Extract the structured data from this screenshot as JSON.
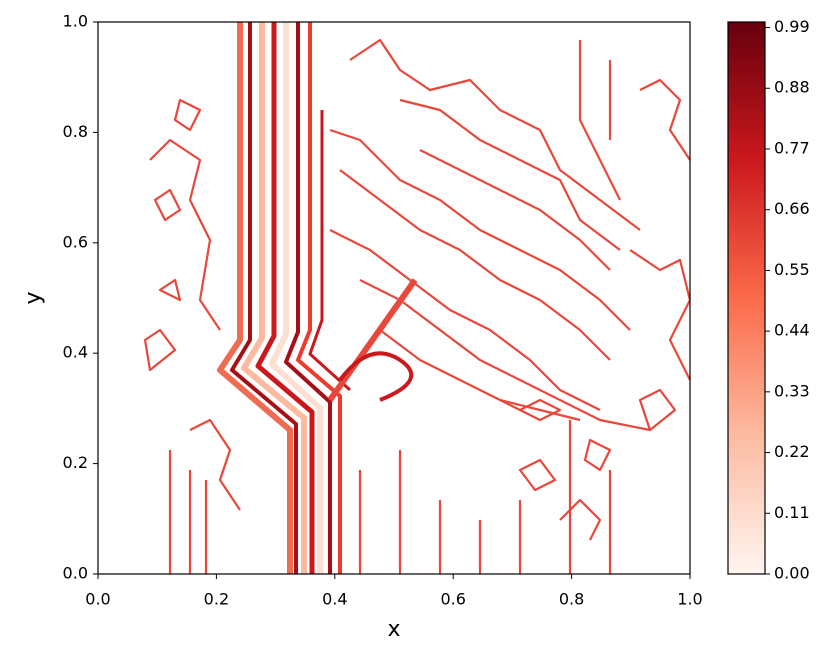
{
  "chart_data": {
    "type": "contour",
    "xlabel": "x",
    "ylabel": "y",
    "colormap": "Reds",
    "xlim": [
      0,
      1
    ],
    "ylim": [
      0,
      1
    ],
    "xticks": [
      {
        "value": 0,
        "label": "0.0"
      },
      {
        "value": 0.2,
        "label": "0.2"
      },
      {
        "value": 0.4,
        "label": "0.4"
      },
      {
        "value": 0.6,
        "label": "0.6"
      },
      {
        "value": 0.8,
        "label": "0.8"
      },
      {
        "value": 1,
        "label": "1.0"
      }
    ],
    "yticks": [
      {
        "value": 0,
        "label": "0.0"
      },
      {
        "value": 0.2,
        "label": "0.2"
      },
      {
        "value": 0.4,
        "label": "0.4"
      },
      {
        "value": 0.6,
        "label": "0.6"
      },
      {
        "value": 0.8,
        "label": "0.8"
      },
      {
        "value": 1,
        "label": "1.0"
      }
    ],
    "colorbar_lim": [
      0,
      1.0
    ],
    "colorbar_ticks": [
      {
        "value": 0,
        "label": "0.00"
      },
      {
        "value": 0.11,
        "label": "0.11"
      },
      {
        "value": 0.22,
        "label": "0.22"
      },
      {
        "value": 0.33,
        "label": "0.33"
      },
      {
        "value": 0.44,
        "label": "0.44"
      },
      {
        "value": 0.55,
        "label": "0.55"
      },
      {
        "value": 0.66,
        "label": "0.66"
      },
      {
        "value": 0.77,
        "label": "0.77"
      },
      {
        "value": 0.88,
        "label": "0.88"
      },
      {
        "value": 0.99,
        "label": "0.99"
      }
    ]
  }
}
